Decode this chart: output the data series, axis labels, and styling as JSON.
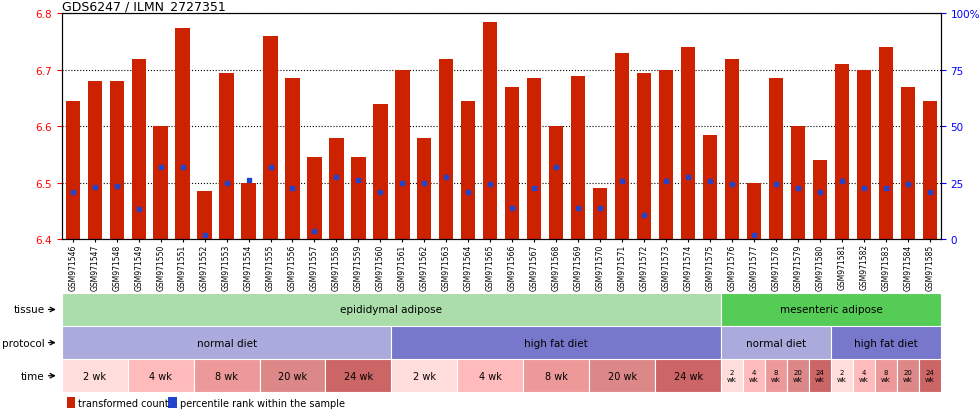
{
  "title": "GDS6247 / ILMN_2727351",
  "ylim_left": [
    6.4,
    6.8
  ],
  "ylim_right": [
    0,
    100
  ],
  "yticks_left": [
    6.4,
    6.5,
    6.6,
    6.7,
    6.8
  ],
  "yticks_right": [
    0,
    25,
    50,
    75,
    100
  ],
  "ytick_labels_right": [
    "0",
    "25",
    "50",
    "75",
    "100%"
  ],
  "samples": [
    "GSM971546",
    "GSM971547",
    "GSM971548",
    "GSM971549",
    "GSM971550",
    "GSM971551",
    "GSM971552",
    "GSM971553",
    "GSM971554",
    "GSM971555",
    "GSM971556",
    "GSM971557",
    "GSM971558",
    "GSM971559",
    "GSM971560",
    "GSM971561",
    "GSM971562",
    "GSM971563",
    "GSM971564",
    "GSM971565",
    "GSM971566",
    "GSM971567",
    "GSM971568",
    "GSM971569",
    "GSM971570",
    "GSM971571",
    "GSM971572",
    "GSM971573",
    "GSM971574",
    "GSM971575",
    "GSM971576",
    "GSM971577",
    "GSM971578",
    "GSM971579",
    "GSM971580",
    "GSM971581",
    "GSM971582",
    "GSM971583",
    "GSM971584",
    "GSM971585"
  ],
  "bar_values": [
    6.645,
    6.68,
    6.68,
    6.72,
    6.6,
    6.775,
    6.485,
    6.695,
    6.5,
    6.76,
    6.685,
    6.545,
    6.58,
    6.545,
    6.64,
    6.7,
    6.58,
    6.72,
    6.645,
    6.785,
    6.67,
    6.685,
    6.6,
    6.69,
    6.49,
    6.73,
    6.695,
    6.7,
    6.74,
    6.585,
    6.72,
    6.5,
    6.685,
    6.6,
    6.54,
    6.71,
    6.7,
    6.74,
    6.67,
    6.645
  ],
  "percentile_values": [
    6.483,
    6.492,
    6.495,
    6.453,
    6.527,
    6.527,
    6.408,
    6.5,
    6.505,
    6.527,
    6.49,
    6.415,
    6.51,
    6.505,
    6.483,
    6.5,
    6.5,
    6.51,
    6.483,
    6.497,
    6.455,
    6.49,
    6.527,
    6.455,
    6.455,
    6.503,
    6.443,
    6.503,
    6.51,
    6.503,
    6.497,
    6.408,
    6.497,
    6.49,
    6.483,
    6.503,
    6.49,
    6.49,
    6.497,
    6.483
  ],
  "bar_color": "#cc2200",
  "blue_color": "#2244cc",
  "bar_bottom": 6.4,
  "tissue_groups": [
    {
      "label": "epididymal adipose",
      "start": 0,
      "end": 29,
      "color": "#aaddaa"
    },
    {
      "label": "mesenteric adipose",
      "start": 30,
      "end": 39,
      "color": "#55cc55"
    }
  ],
  "protocol_groups": [
    {
      "label": "normal diet",
      "start": 0,
      "end": 14,
      "color": "#aaaadd"
    },
    {
      "label": "high fat diet",
      "start": 15,
      "end": 29,
      "color": "#7777cc"
    },
    {
      "label": "normal diet",
      "start": 30,
      "end": 34,
      "color": "#aaaadd"
    },
    {
      "label": "high fat diet",
      "start": 35,
      "end": 39,
      "color": "#7777cc"
    }
  ],
  "time_groups": [
    {
      "label": "2 wk",
      "start": 0,
      "end": 2,
      "color": "#ffdddd",
      "small": false
    },
    {
      "label": "4 wk",
      "start": 3,
      "end": 5,
      "color": "#ffbbbb",
      "small": false
    },
    {
      "label": "8 wk",
      "start": 6,
      "end": 8,
      "color": "#ee9999",
      "small": false
    },
    {
      "label": "20 wk",
      "start": 9,
      "end": 11,
      "color": "#dd8888",
      "small": false
    },
    {
      "label": "24 wk",
      "start": 12,
      "end": 14,
      "color": "#cc6666",
      "small": false
    },
    {
      "label": "2 wk",
      "start": 15,
      "end": 17,
      "color": "#ffdddd",
      "small": false
    },
    {
      "label": "4 wk",
      "start": 18,
      "end": 20,
      "color": "#ffbbbb",
      "small": false
    },
    {
      "label": "8 wk",
      "start": 21,
      "end": 23,
      "color": "#ee9999",
      "small": false
    },
    {
      "label": "20 wk",
      "start": 24,
      "end": 26,
      "color": "#dd8888",
      "small": false
    },
    {
      "label": "24 wk",
      "start": 27,
      "end": 29,
      "color": "#cc6666",
      "small": false
    },
    {
      "label": "2\nwk",
      "start": 30,
      "end": 30,
      "color": "#ffdddd",
      "small": true
    },
    {
      "label": "4\nwk",
      "start": 31,
      "end": 31,
      "color": "#ffbbbb",
      "small": true
    },
    {
      "label": "8\nwk",
      "start": 32,
      "end": 32,
      "color": "#ee9999",
      "small": true
    },
    {
      "label": "20\nwk",
      "start": 33,
      "end": 33,
      "color": "#dd8888",
      "small": true
    },
    {
      "label": "24\nwk",
      "start": 34,
      "end": 34,
      "color": "#cc6666",
      "small": true
    },
    {
      "label": "2\nwk",
      "start": 35,
      "end": 35,
      "color": "#ffdddd",
      "small": true
    },
    {
      "label": "4\nwk",
      "start": 36,
      "end": 36,
      "color": "#ffbbbb",
      "small": true
    },
    {
      "label": "8\nwk",
      "start": 37,
      "end": 37,
      "color": "#ee9999",
      "small": true
    },
    {
      "label": "20\nwk",
      "start": 38,
      "end": 38,
      "color": "#dd8888",
      "small": true
    },
    {
      "label": "24\nwk",
      "start": 39,
      "end": 39,
      "color": "#cc6666",
      "small": true
    }
  ],
  "legend_items": [
    {
      "label": "transformed count",
      "color": "#cc2200"
    },
    {
      "label": "percentile rank within the sample",
      "color": "#2244cc"
    }
  ],
  "background_color": "#ffffff"
}
